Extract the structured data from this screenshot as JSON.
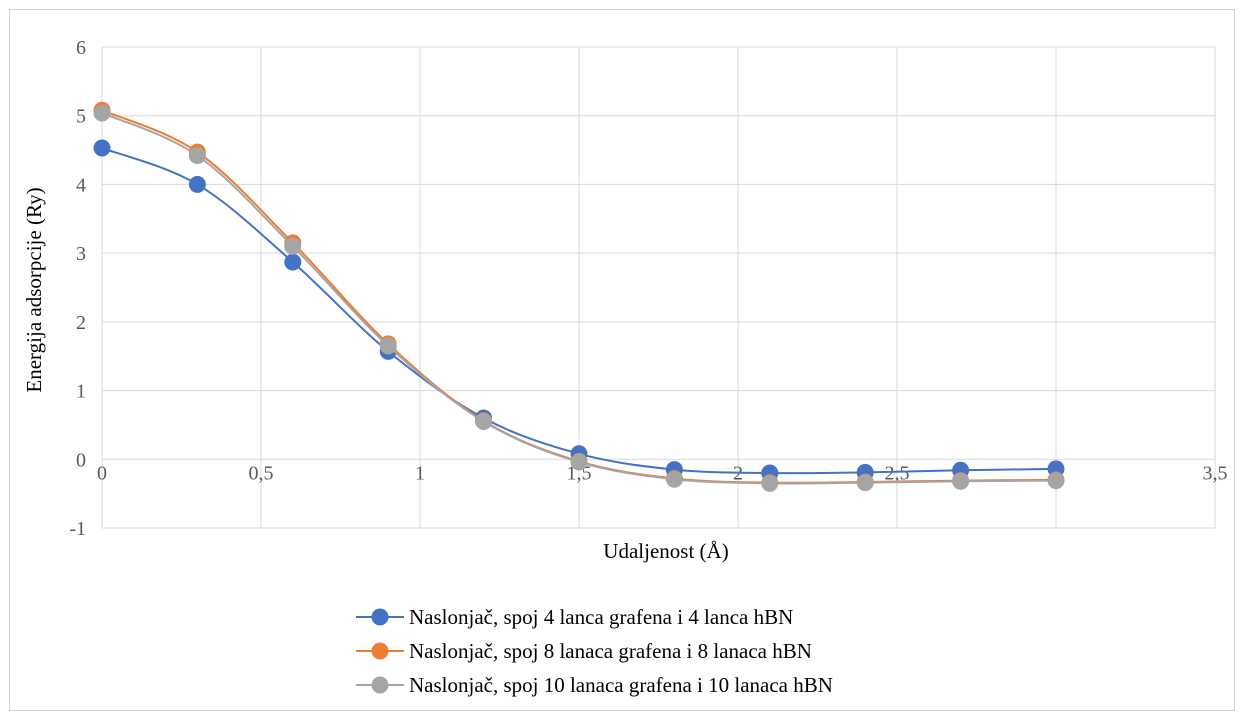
{
  "chart_data": {
    "type": "line",
    "title": "",
    "xlabel": "Udaljenost (Å)",
    "ylabel": "Energija adsorpcije (Ry)",
    "xlim": [
      0,
      3.5
    ],
    "ylim": [
      -1,
      6
    ],
    "x_ticks": [
      "0",
      "0,5",
      "1",
      "1,5",
      "2",
      "2,5",
      "3",
      "3,5"
    ],
    "y_ticks": [
      "-1",
      "0",
      "1",
      "2",
      "3",
      "4",
      "5",
      "6"
    ],
    "grid": true,
    "smooth": true,
    "legend_position": "bottom",
    "x": [
      0,
      0.3,
      0.6,
      0.9,
      1.2,
      1.5,
      1.8,
      2.1,
      2.4,
      2.7,
      3.0
    ],
    "series": [
      {
        "name": "Naslonjač, spoj 4 lanca grafena i 4 lanca hBN",
        "color": "#4472C4",
        "values": [
          4.53,
          4.0,
          2.87,
          1.57,
          0.6,
          0.08,
          -0.15,
          -0.2,
          -0.19,
          -0.16,
          -0.14
        ]
      },
      {
        "name": "Naslonjač, spoj 8 lanaca grafena i 8 lanaca hBN",
        "color": "#ED7D31",
        "values": [
          5.08,
          4.47,
          3.15,
          1.68,
          0.56,
          -0.03,
          -0.28,
          -0.34,
          -0.33,
          -0.31,
          -0.3
        ]
      },
      {
        "name": "Naslonjač, spoj 10 lanaca grafena i 10 lanaca hBN",
        "color": "#A5A5A5",
        "values": [
          5.04,
          4.42,
          3.1,
          1.65,
          0.55,
          -0.04,
          -0.29,
          -0.35,
          -0.34,
          -0.32,
          -0.31
        ]
      }
    ]
  }
}
